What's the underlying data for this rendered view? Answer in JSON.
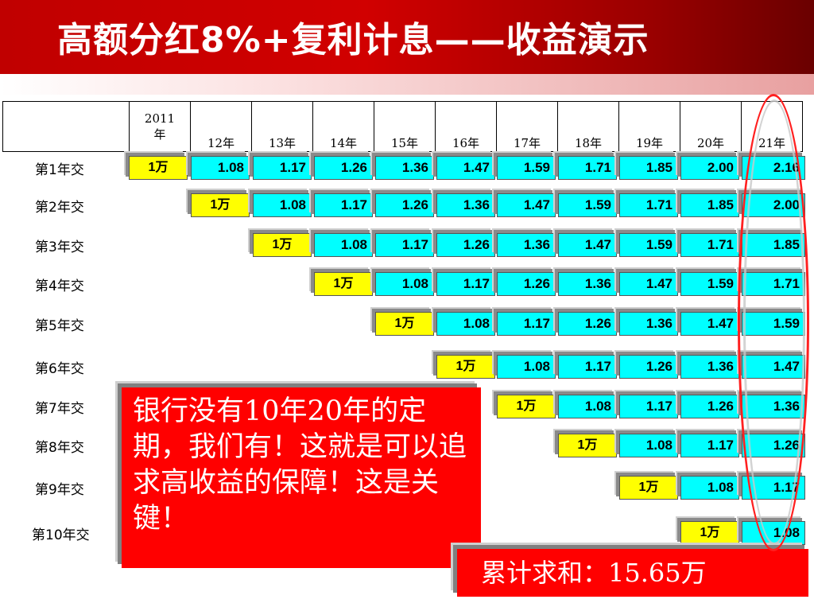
{
  "title": "高额分红8%+复利计息——收益演示",
  "header": {
    "first_year": "2011\n年",
    "years": [
      "12年",
      "13年",
      "14年",
      "15年",
      "16年",
      "17年",
      "18年",
      "19年",
      "20年",
      "21年"
    ]
  },
  "first_payment": "1万",
  "rows": [
    {
      "label": "第1年交",
      "values": [
        "1.08",
        "1.17",
        "1.26",
        "1.36",
        "1.47",
        "1.59",
        "1.71",
        "1.85",
        "2.00",
        "2.16"
      ]
    },
    {
      "label": "第2年交",
      "values": [
        "1.08",
        "1.17",
        "1.26",
        "1.36",
        "1.47",
        "1.59",
        "1.71",
        "1.85",
        "2.00"
      ]
    },
    {
      "label": "第3年交",
      "values": [
        "1.08",
        "1.17",
        "1.26",
        "1.36",
        "1.47",
        "1.59",
        "1.71",
        "1.85"
      ]
    },
    {
      "label": "第4年交",
      "values": [
        "1.08",
        "1.17",
        "1.26",
        "1.36",
        "1.47",
        "1.59",
        "1.71"
      ]
    },
    {
      "label": "第5年交",
      "values": [
        "1.08",
        "1.17",
        "1.26",
        "1.36",
        "1.47",
        "1.59"
      ]
    },
    {
      "label": "第6年交",
      "values": [
        "1.08",
        "1.17",
        "1.26",
        "1.36",
        "1.47"
      ]
    },
    {
      "label": "第7年交",
      "values": [
        "1.08",
        "1.17",
        "1.26",
        "1.36"
      ]
    },
    {
      "label": "第8年交",
      "values": [
        "1.08",
        "1.17",
        "1.26"
      ]
    },
    {
      "label": "第9年交",
      "values": [
        "1.08",
        "1.17"
      ]
    },
    {
      "label": "第10年交",
      "values": [
        "1.08"
      ]
    }
  ],
  "callout": "银行没有10年20年的定期，我们有！这就是可以追求高收益的保障！这是关键！",
  "sum": "累计求和：15.65万",
  "colors": {
    "banner": "#c00000",
    "first_cell": "#ffff00",
    "value_cell": "#00ffff",
    "callout": "#ff0000"
  }
}
